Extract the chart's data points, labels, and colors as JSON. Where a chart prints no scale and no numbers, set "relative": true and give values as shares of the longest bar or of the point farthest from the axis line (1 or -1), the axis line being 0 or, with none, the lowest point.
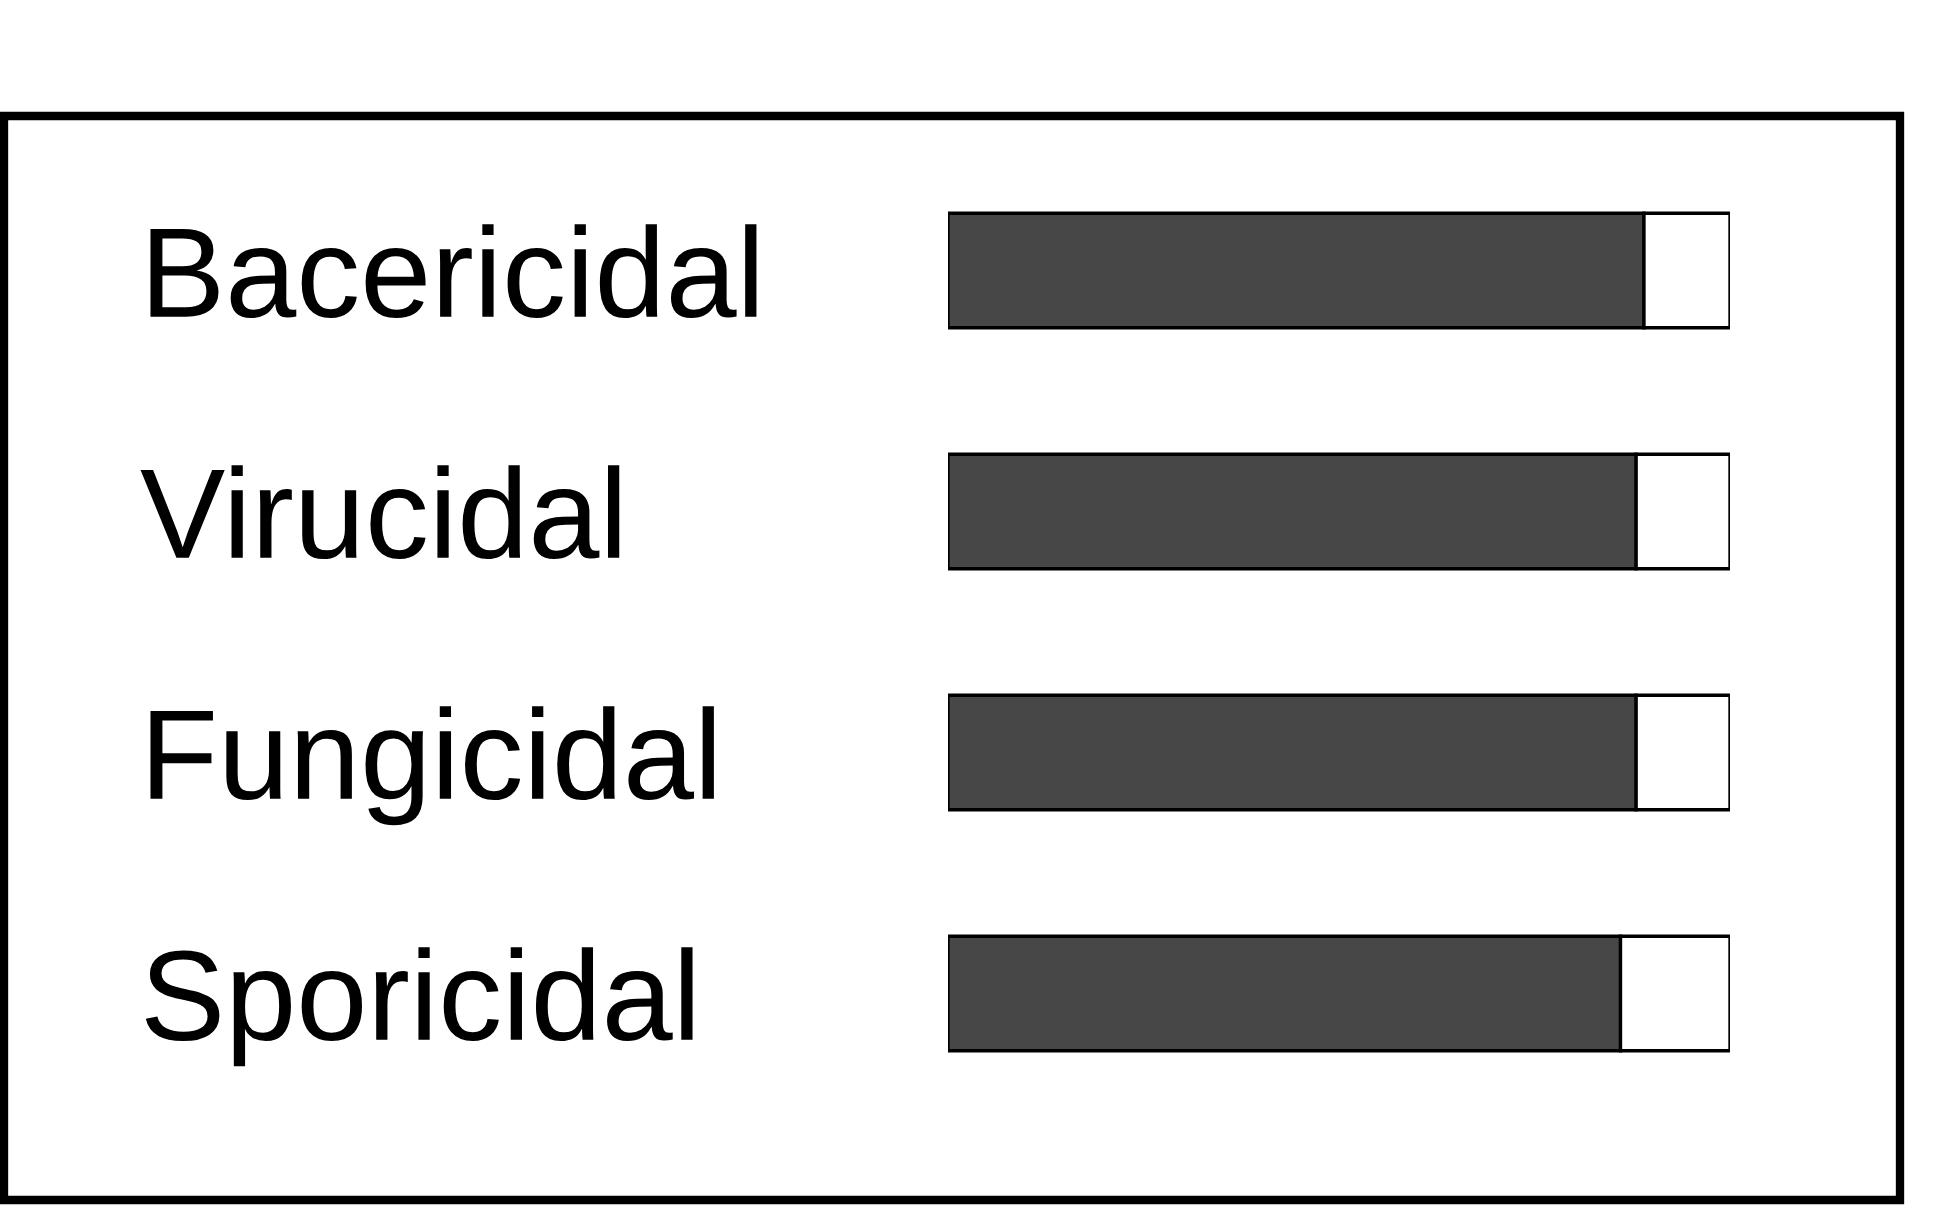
{
  "chart_data": {
    "type": "bar",
    "orientation": "horizontal",
    "stacked": true,
    "relative": true,
    "categories": [
      "Bacericidal",
      "Virucidal",
      "Fungicidal",
      "Sporicidal"
    ],
    "series": [
      {
        "color": "#474747",
        "values": [
          0.89,
          0.88,
          0.88,
          0.86
        ]
      },
      {
        "color": "#ffffff",
        "values": [
          0.11,
          0.12,
          0.12,
          0.14
        ]
      }
    ],
    "grid": false,
    "legend": false
  }
}
